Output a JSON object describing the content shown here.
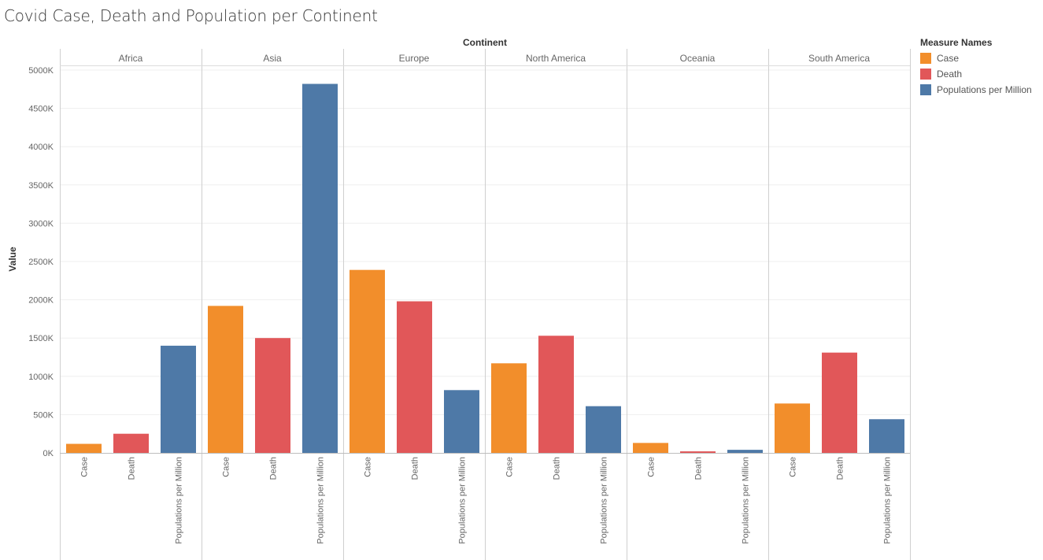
{
  "chart_data": {
    "type": "bar",
    "title": "Covid Case, Death and Population per Continent",
    "column_header": "Continent",
    "ylabel": "Value",
    "ylim": [
      0,
      5000
    ],
    "yticks": [
      0,
      500,
      1000,
      1500,
      2000,
      2500,
      3000,
      3500,
      4000,
      4500,
      5000
    ],
    "ytick_labels": [
      "0K",
      "500K",
      "1000K",
      "1500K",
      "2000K",
      "2500K",
      "3000K",
      "3500K",
      "4000K",
      "4500K",
      "5000K"
    ],
    "categories": [
      "Case",
      "Death",
      "Populations per Million"
    ],
    "groups": [
      {
        "name": "Africa",
        "values": [
          118,
          250,
          1400
        ]
      },
      {
        "name": "Asia",
        "values": [
          1920,
          1500,
          4820
        ]
      },
      {
        "name": "Europe",
        "values": [
          2390,
          1980,
          820
        ]
      },
      {
        "name": "North America",
        "values": [
          1170,
          1530,
          610
        ]
      },
      {
        "name": "Oceania",
        "values": [
          130,
          20,
          40
        ]
      },
      {
        "name": "South America",
        "values": [
          645,
          1310,
          440
        ]
      }
    ],
    "legend": {
      "title": "Measure Names",
      "placement": "right",
      "entries": [
        {
          "label": "Case",
          "color": "#f28e2b"
        },
        {
          "label": "Death",
          "color": "#e15759"
        },
        {
          "label": "Populations per Million",
          "color": "#4e79a7"
        }
      ]
    }
  }
}
